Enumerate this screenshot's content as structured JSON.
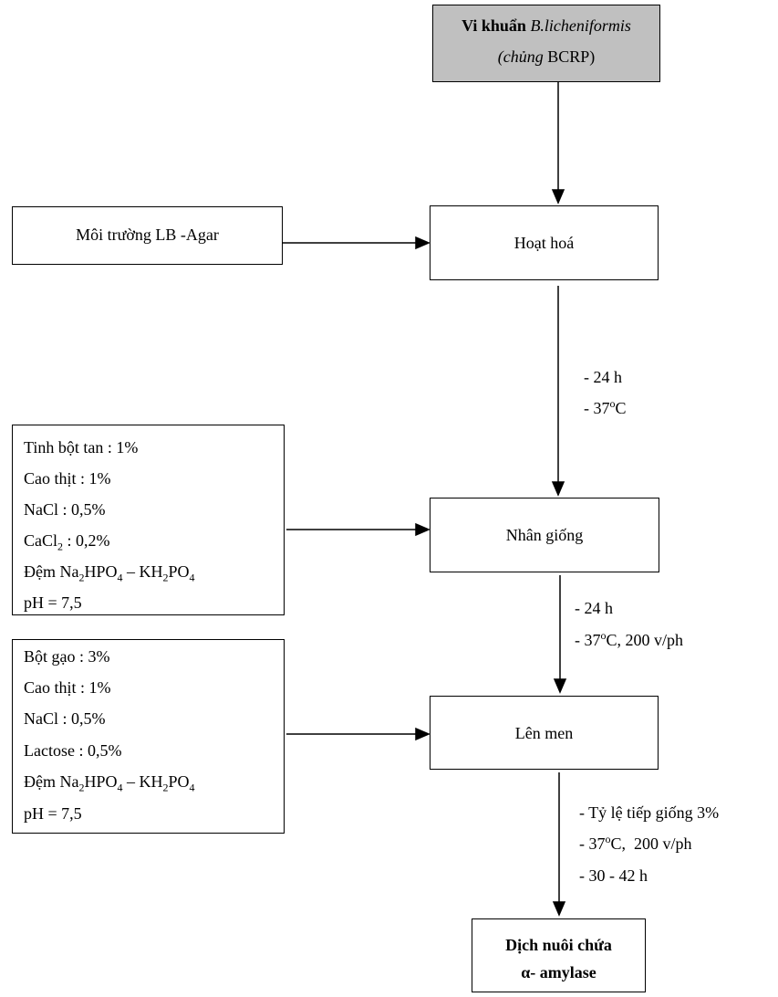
{
  "source": {
    "lines": [
      [
        "Vi khuẩn ",
        "B.licheniformis"
      ],
      [
        "(chủng ",
        "BCRP)"
      ]
    ]
  },
  "steps": [
    {
      "label": "Hoạt hoá",
      "medium": [
        [
          "Môi trường LB -Agar"
        ]
      ],
      "conditions": [
        [
          "- 24 h"
        ],
        [
          "- 37",
          "o",
          "C"
        ]
      ]
    },
    {
      "label": "Nhân giống",
      "medium": [
        [
          "Tinh bột tan : 1%"
        ],
        [
          "Cao thịt : 1%"
        ],
        [
          "NaCl : 0,5%"
        ],
        [
          "CaCl",
          "2",
          " : 0,2%"
        ],
        [
          "Đệm Na",
          "2",
          "HPO",
          "4",
          " – KH",
          "2",
          "PO",
          "4"
        ],
        [
          "pH = 7,5"
        ]
      ],
      "conditions": [
        [
          "- 24 h"
        ],
        [
          "- 37",
          "o",
          "C, 200 v/ph"
        ]
      ]
    },
    {
      "label": "Lên men",
      "medium": [
        [
          "Bột gạo : 3%"
        ],
        [
          "Cao thịt : 1%"
        ],
        [
          "NaCl : 0,5%"
        ],
        [
          "Lactose : 0,5%"
        ],
        [
          "Đệm Na",
          "2",
          "HPO",
          "4",
          " – KH",
          "2",
          "PO",
          "4"
        ],
        [
          "pH = 7,5"
        ]
      ],
      "conditions": [
        [
          "- Tỷ lệ tiếp giống 3%"
        ],
        [
          "- 37",
          "o",
          "C,  200 v/ph"
        ],
        [
          "- 30 - 42 h"
        ]
      ]
    }
  ],
  "product": {
    "lines": [
      [
        "Dịch nuôi chứa"
      ],
      [
        "α- amylase"
      ]
    ]
  }
}
